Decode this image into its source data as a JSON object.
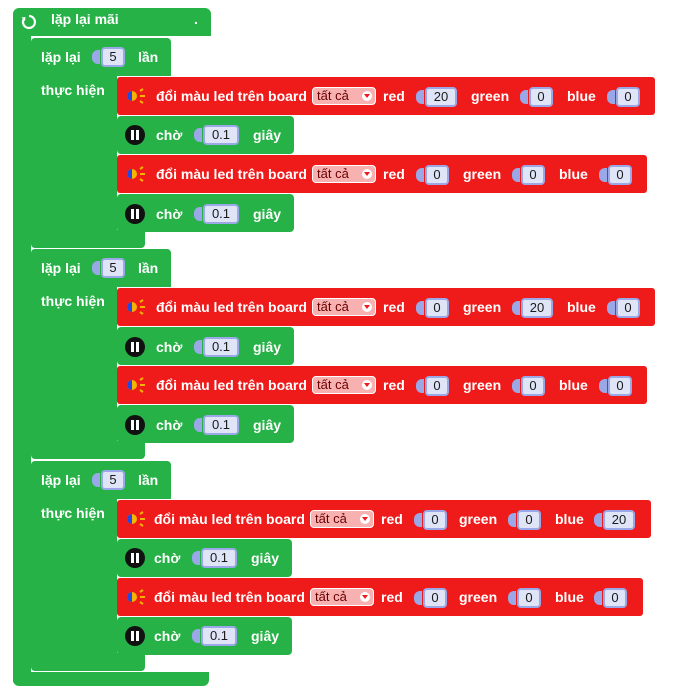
{
  "forever": {
    "label": "lặp lại mãi",
    "dot": "."
  },
  "loops": [
    {
      "repeat_label": "lặp lại",
      "count": "5",
      "times_label": "lần",
      "do_label": "thực hiện",
      "steps": [
        {
          "label": "đổi màu led trên board",
          "target": "tất cả",
          "red_label": "red",
          "red": "20",
          "green_label": "green",
          "green": "0",
          "blue_label": "blue",
          "blue": "0"
        },
        {
          "label": "chờ",
          "value": "0.1",
          "unit": "giây"
        },
        {
          "label": "đổi màu led trên board",
          "target": "tất cả",
          "red_label": "red",
          "red": "0",
          "green_label": "green",
          "green": "0",
          "blue_label": "blue",
          "blue": "0"
        },
        {
          "label": "chờ",
          "value": "0.1",
          "unit": "giây"
        }
      ]
    },
    {
      "repeat_label": "lặp lại",
      "count": "5",
      "times_label": "lần",
      "do_label": "thực hiện",
      "steps": [
        {
          "label": "đổi màu led trên board",
          "target": "tất cả",
          "red_label": "red",
          "red": "0",
          "green_label": "green",
          "green": "20",
          "blue_label": "blue",
          "blue": "0"
        },
        {
          "label": "chờ",
          "value": "0.1",
          "unit": "giây"
        },
        {
          "label": "đổi màu led trên board",
          "target": "tất cả",
          "red_label": "red",
          "red": "0",
          "green_label": "green",
          "green": "0",
          "blue_label": "blue",
          "blue": "0"
        },
        {
          "label": "chờ",
          "value": "0.1",
          "unit": "giây"
        }
      ]
    },
    {
      "repeat_label": "lặp lại",
      "count": "5",
      "times_label": "lần",
      "do_label": "thực hiện",
      "steps": [
        {
          "label": "đổi màu led trên board",
          "target": "tất cả",
          "red_label": "red",
          "red": "0",
          "green_label": "green",
          "green": "0",
          "blue_label": "blue",
          "blue": "20"
        },
        {
          "label": "chờ",
          "value": "0.1",
          "unit": "giây"
        },
        {
          "label": "đổi màu led trên board",
          "target": "tất cả",
          "red_label": "red",
          "red": "0",
          "green_label": "green",
          "green": "0",
          "blue_label": "blue",
          "blue": "0"
        },
        {
          "label": "chờ",
          "value": "0.1",
          "unit": "giây"
        }
      ]
    }
  ],
  "colors": {
    "control_green": "#27b248",
    "led_red": "#ef1b1b",
    "number_field": "#dfe4f7",
    "number_border": "#9aa8e8",
    "dropdown": "#f7b1b1"
  },
  "icons": {
    "forever": "refresh-icon",
    "led": "led-color-icon",
    "wait": "pause-icon",
    "dropdown": "chevron-down-icon"
  }
}
